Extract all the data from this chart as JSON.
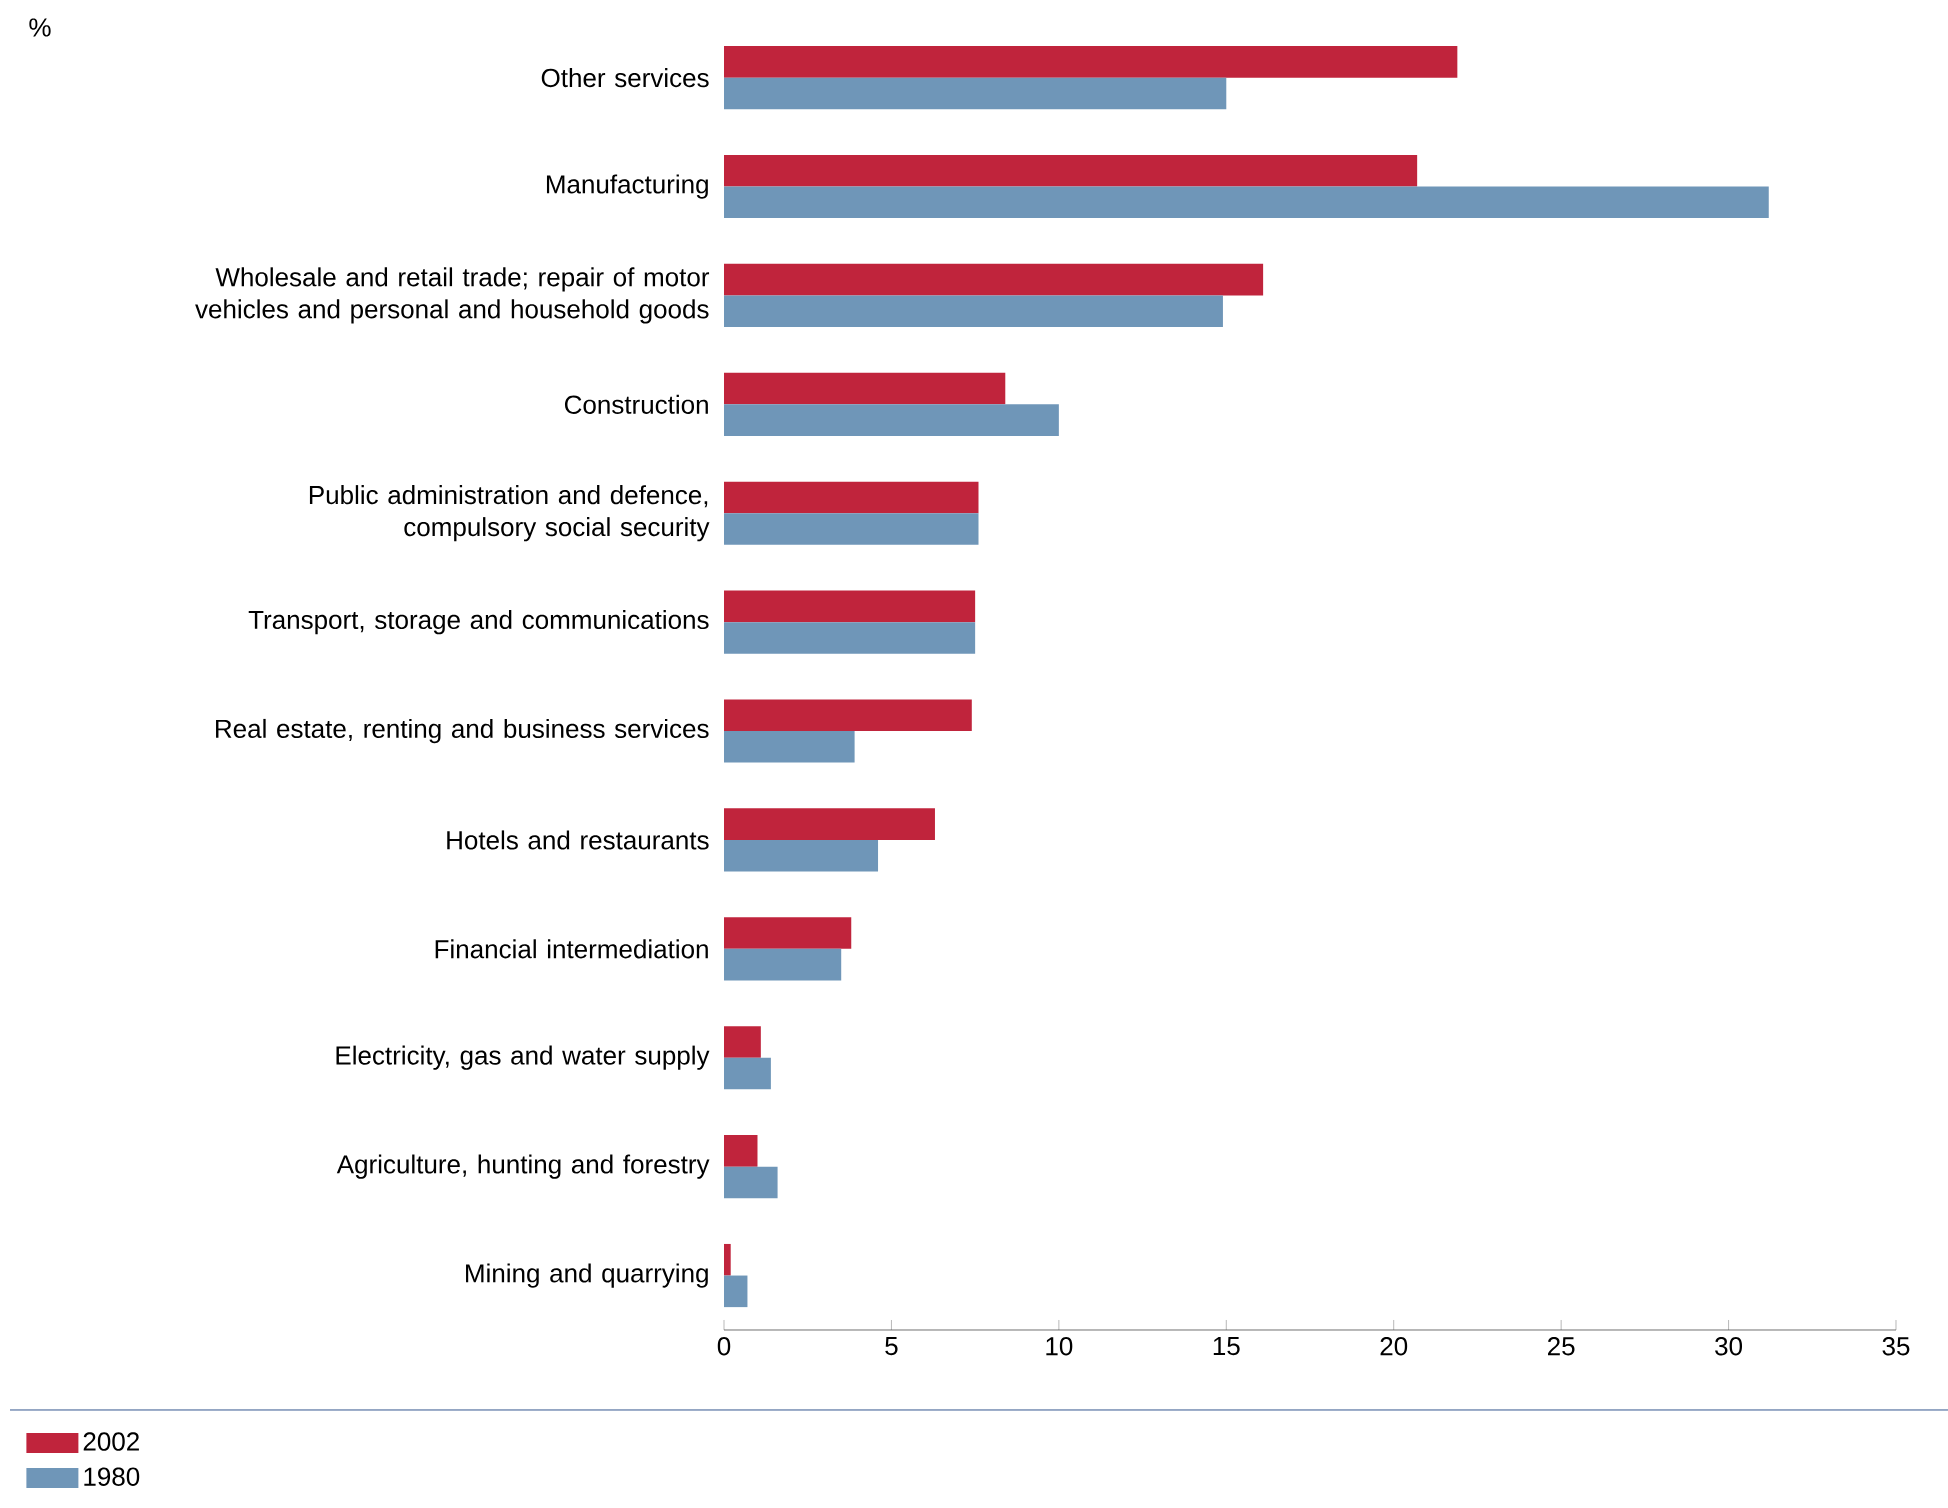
{
  "chart_data": {
    "type": "bar",
    "orientation": "horizontal",
    "categories": [
      "Other services",
      "Manufacturing",
      "Wholesale and retail trade; repair of motor vehicles and personal and household goods",
      "Construction",
      "Public administration and defence, compulsory social security",
      "Transport, storage and communications",
      "Real estate, renting and business services",
      "Hotels and restaurants",
      "Financial intermediation",
      "Electricity, gas and water supply",
      "Agriculture, hunting and forestry",
      "Mining and quarrying"
    ],
    "series": [
      {
        "name": "2002",
        "color": "#c0243c",
        "values": [
          21.9,
          20.7,
          16.1,
          8.4,
          7.6,
          7.5,
          7.4,
          6.3,
          3.8,
          1.1,
          1.0,
          0.2
        ]
      },
      {
        "name": "1980",
        "color": "#6f96b8",
        "values": [
          15.0,
          31.2,
          14.9,
          10.0,
          7.6,
          7.5,
          3.9,
          4.6,
          3.5,
          1.4,
          1.6,
          0.7
        ]
      }
    ],
    "xlim": [
      0,
      35
    ],
    "xticks": [
      0,
      5,
      10,
      15,
      20,
      25,
      30,
      35
    ],
    "annotations": [
      "%"
    ],
    "grid": false,
    "legend": "bottom left"
  }
}
